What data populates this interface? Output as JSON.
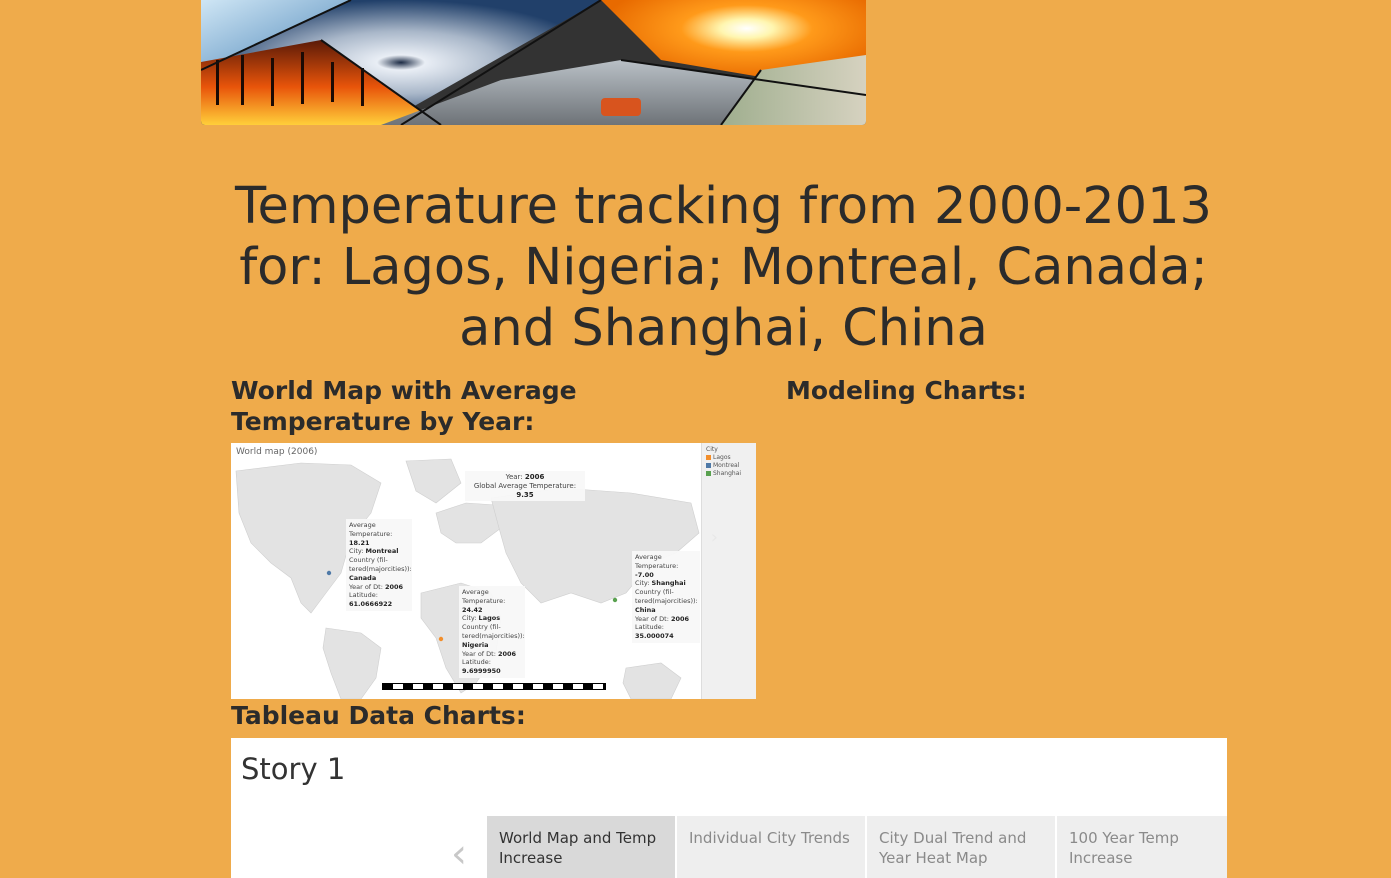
{
  "banner": {
    "description_icon": "weather-collage-banner"
  },
  "title": "Temperature tracking from 2000-2013 for: Lagos, Nigeria; Montreal, Canada; and Shanghai, China",
  "sections": {
    "map_heading": "World Map with Average Temperature by Year:",
    "modeling_heading": "Modeling Charts:",
    "tableau_heading": "Tableau Data Charts:"
  },
  "map_preview": {
    "title": "World map (2006)",
    "legend_title": "City",
    "legend": [
      {
        "label": "Lagos",
        "color": "#F28E2B"
      },
      {
        "label": "Montreal",
        "color": "#4E79A7"
      },
      {
        "label": "Shanghai",
        "color": "#59A14F"
      }
    ],
    "global": {
      "year_label": "Year:",
      "year": "2006",
      "avg_label": "Global Average Temperature:",
      "avg_value": "9.35"
    },
    "montreal": {
      "avg_label": "Average Temperature:",
      "avg": "18.21",
      "city_label": "City:",
      "city": "Montreal",
      "country_label": "Country (fil-tered(majorcities)):",
      "country": "Canada",
      "year_label": "Year of Dt:",
      "year": "2006",
      "lat_label": "Latitude:",
      "lat": "61.0666922"
    },
    "lagos": {
      "avg_label": "Average Temperature:",
      "avg": "24.42",
      "city_label": "City:",
      "city": "Lagos",
      "country_label": "Country (fil-tered(majorcities)):",
      "country": "Nigeria",
      "year_label": "Year of Dt:",
      "year": "2006",
      "lat_label": "Latitude:",
      "lat": "9.6999950"
    },
    "shanghai": {
      "avg_label": "Average Temperature:",
      "avg": "-7.00",
      "city_label": "City:",
      "city": "Shanghai",
      "country_label": "Country (fil-tered(majorcities)):",
      "country": "China",
      "year_label": "Year of Dt:",
      "year": "2006",
      "lat_label": "Latitude:",
      "lat": "35.000074"
    }
  },
  "tableau": {
    "story_title": "Story 1",
    "tabs": [
      {
        "label": "World Map and Temp Increase",
        "active": true
      },
      {
        "label": "Individual City Trends",
        "active": false
      },
      {
        "label": "City Dual Trend and Year Heat Map",
        "active": false
      },
      {
        "label": "100 Year Temp Increase",
        "active": false
      }
    ]
  }
}
